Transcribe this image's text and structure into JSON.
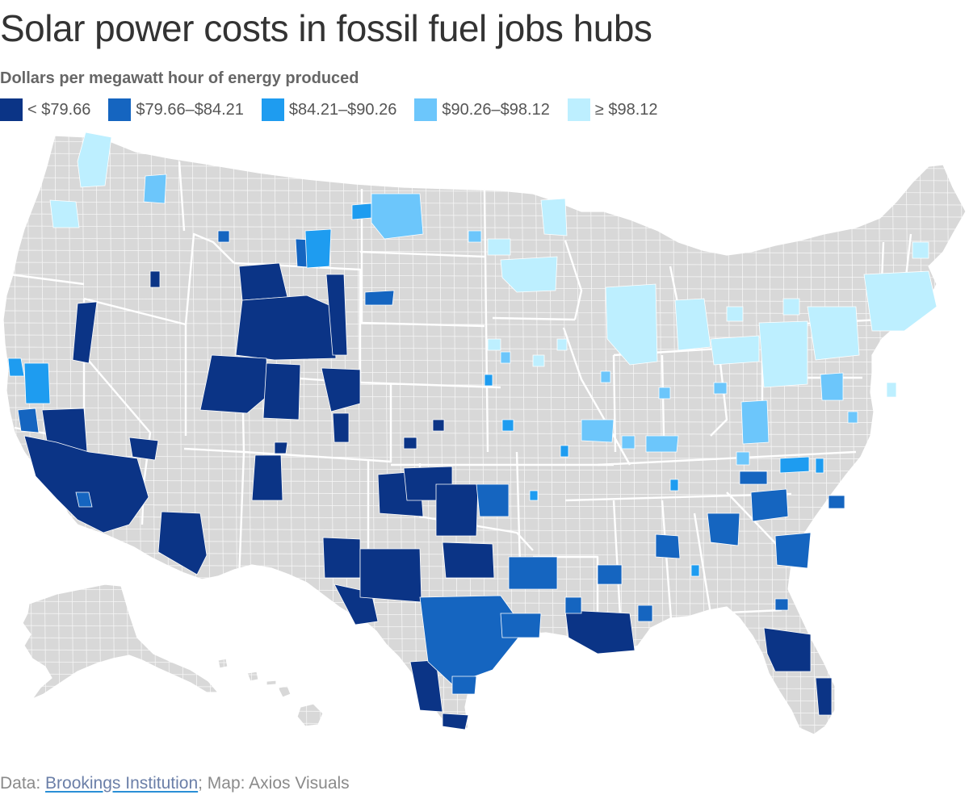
{
  "title": "Solar power costs in fossil fuel jobs hubs",
  "subtitle": "Dollars per megawatt hour of energy produced",
  "legend": [
    {
      "label": "< $79.66",
      "color": "#0b3486"
    },
    {
      "label": "$79.66–$84.21",
      "color": "#1565c0"
    },
    {
      "label": "$84.21–$90.26",
      "color": "#1e9cf0"
    },
    {
      "label": "$90.26–$98.12",
      "color": "#6cc6fb"
    },
    {
      "label": "≥ $98.12",
      "color": "#bdefff"
    }
  ],
  "colors": {
    "land": "#d8d8d8",
    "state_border": "#ffffff",
    "county_border": "#ffffff"
  },
  "footer": {
    "data_prefix": "Data: ",
    "source": "Brookings Institution",
    "suffix": "; Map: Axios Visuals"
  }
}
